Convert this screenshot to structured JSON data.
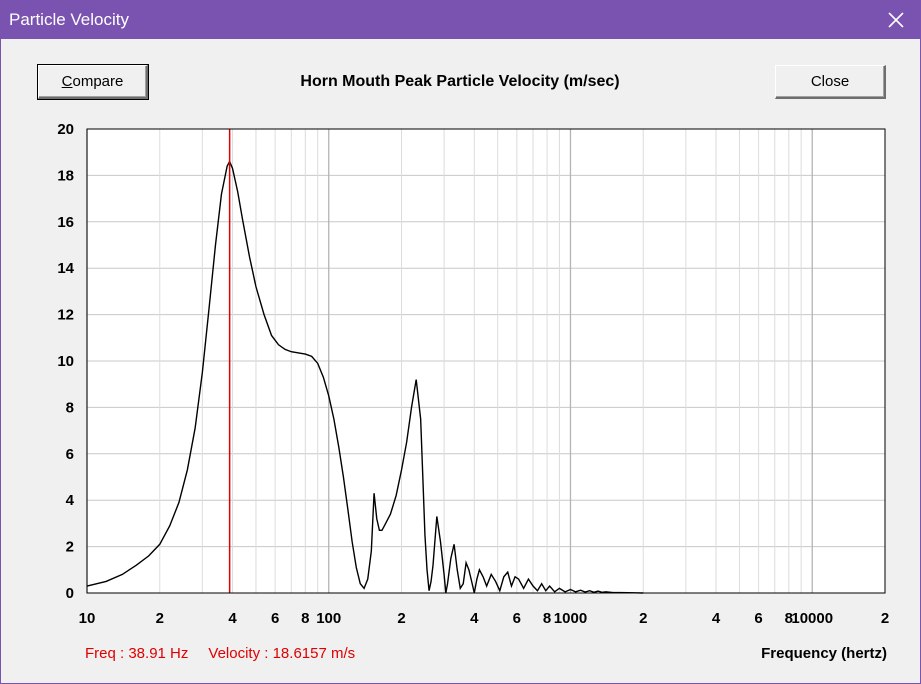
{
  "window": {
    "title": "Particle Velocity",
    "accent_color": "#7a52b0",
    "close_icon": "close-icon"
  },
  "toolbar": {
    "compare_label_first": "C",
    "compare_label_rest": "ompare",
    "close_label": "Close"
  },
  "readout": {
    "freq": "Freq : 38.91 Hz",
    "velocity": "Velocity : 18.6157 m/s",
    "color": "#e00000"
  },
  "chart_data": {
    "type": "line",
    "title": "Horn Mouth Peak Particle Velocity (m/sec)",
    "xlabel": "Frequency (hertz)",
    "ylabel": "",
    "x_scale": "log",
    "xlim": [
      10,
      20000
    ],
    "ylim": [
      0,
      20
    ],
    "grid": true,
    "y_ticks": [
      "0",
      "2",
      "4",
      "6",
      "8",
      "10",
      "12",
      "14",
      "16",
      "18",
      "20"
    ],
    "x_ticks": [
      {
        "value": 10,
        "label": "10"
      },
      {
        "value": 20,
        "label": "2"
      },
      {
        "value": 40,
        "label": "4"
      },
      {
        "value": 60,
        "label": "6"
      },
      {
        "value": 80,
        "label": "8"
      },
      {
        "value": 100,
        "label": "100"
      },
      {
        "value": 200,
        "label": "2"
      },
      {
        "value": 400,
        "label": "4"
      },
      {
        "value": 600,
        "label": "6"
      },
      {
        "value": 800,
        "label": "8"
      },
      {
        "value": 1000,
        "label": "1000"
      },
      {
        "value": 2000,
        "label": "2"
      },
      {
        "value": 4000,
        "label": "4"
      },
      {
        "value": 6000,
        "label": "6"
      },
      {
        "value": 8000,
        "label": "8"
      },
      {
        "value": 10000,
        "label": "10000"
      },
      {
        "value": 20000,
        "label": "2"
      }
    ],
    "cursor_x": 38.91,
    "series": [
      {
        "name": "Peak Particle Velocity",
        "color": "#000000",
        "x": [
          10,
          12,
          14,
          16,
          18,
          20,
          22,
          24,
          26,
          28,
          30,
          32,
          34,
          36,
          38,
          38.91,
          40,
          42,
          44,
          47,
          50,
          54,
          58,
          62,
          66,
          70,
          75,
          80,
          85,
          90,
          95,
          100,
          105,
          110,
          115,
          120,
          125,
          130,
          135,
          140,
          145,
          150,
          154,
          158,
          162,
          166,
          170,
          180,
          190,
          200,
          210,
          220,
          230,
          240,
          245,
          250,
          255,
          260,
          265,
          270,
          280,
          290,
          300,
          305,
          310,
          320,
          330,
          340,
          350,
          360,
          370,
          380,
          390,
          400,
          410,
          420,
          435,
          450,
          470,
          490,
          510,
          530,
          550,
          570,
          590,
          610,
          640,
          670,
          700,
          730,
          760,
          790,
          820,
          860,
          900,
          950,
          1000,
          1050,
          1100,
          1150,
          1200,
          1250,
          1300,
          1350,
          1400,
          1500,
          1600,
          2000
        ],
        "values": [
          0.3,
          0.5,
          0.8,
          1.2,
          1.6,
          2.1,
          2.9,
          3.9,
          5.3,
          7.1,
          9.5,
          12.3,
          15.0,
          17.2,
          18.4,
          18.6,
          18.3,
          17.3,
          16.1,
          14.5,
          13.2,
          12.0,
          11.1,
          10.7,
          10.5,
          10.4,
          10.35,
          10.3,
          10.2,
          9.9,
          9.3,
          8.5,
          7.5,
          6.3,
          5.0,
          3.6,
          2.2,
          1.1,
          0.4,
          0.2,
          0.6,
          1.8,
          4.3,
          3.2,
          2.7,
          2.7,
          2.9,
          3.4,
          4.2,
          5.3,
          6.5,
          8.0,
          9.2,
          7.5,
          5.0,
          2.5,
          1.0,
          0.1,
          0.5,
          1.2,
          3.3,
          2.2,
          0.8,
          0.0,
          0.4,
          1.5,
          2.1,
          1.0,
          0.2,
          0.4,
          1.3,
          1.0,
          0.5,
          0.0,
          0.6,
          1.0,
          0.7,
          0.3,
          0.8,
          0.5,
          0.1,
          0.7,
          0.9,
          0.3,
          0.7,
          0.6,
          0.2,
          0.6,
          0.3,
          0.1,
          0.4,
          0.1,
          0.3,
          0.05,
          0.2,
          0.05,
          0.15,
          0.05,
          0.12,
          0.04,
          0.1,
          0.03,
          0.08,
          0.03,
          0.05,
          0.02,
          0.02,
          0.0
        ]
      }
    ]
  }
}
